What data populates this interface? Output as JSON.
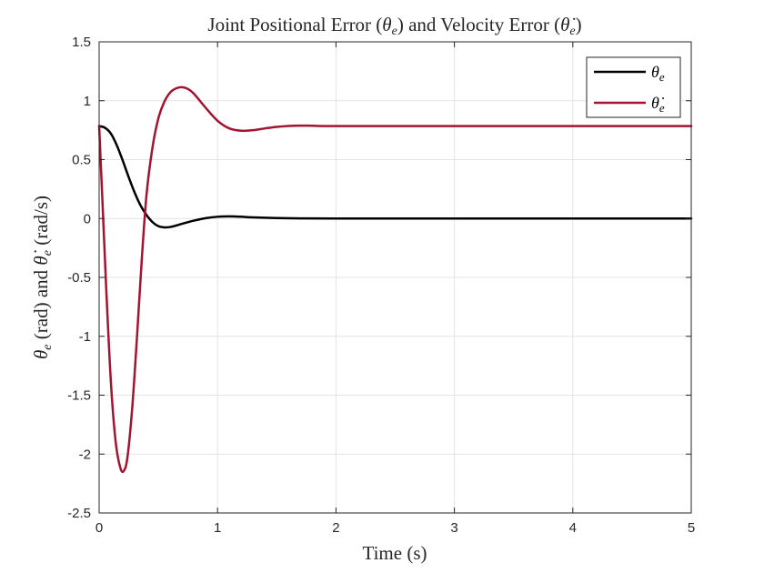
{
  "chart_data": {
    "type": "line",
    "title_parts": {
      "pre": "Joint Positional Error (",
      "sym1": "θ",
      "sub1": "e",
      "mid": ") and Velocity Error (",
      "sym2": "θ̇",
      "sub2": "e",
      "post": ")"
    },
    "xlabel": "Time (s)",
    "ylabel_parts": {
      "sym1": "θ",
      "sub1": "e",
      "mid": " (rad) and ",
      "sym2": "θ̇",
      "sub2": "e",
      "post": " (rad/s)"
    },
    "xlim": [
      0,
      5
    ],
    "ylim": [
      -2.5,
      1.5
    ],
    "xticks": [
      0,
      1,
      2,
      3,
      4,
      5
    ],
    "xtick_labels": [
      "0",
      "1",
      "2",
      "3",
      "4",
      "5"
    ],
    "yticks": [
      -2.5,
      -2,
      -1.5,
      -1,
      -0.5,
      0,
      0.5,
      1,
      1.5
    ],
    "ytick_labels": [
      "-2.5",
      "-2",
      "-1.5",
      "-1",
      "-0.5",
      "0",
      "0.5",
      "1",
      "1.5"
    ],
    "grid": true,
    "legend_position": "top-right",
    "series": [
      {
        "name": "θe",
        "legend_symbol": "θ",
        "legend_sub": "e",
        "color": "#000000",
        "x": [
          0,
          0.05,
          0.1,
          0.15,
          0.2,
          0.25,
          0.3,
          0.35,
          0.4,
          0.45,
          0.5,
          0.55,
          0.6,
          0.65,
          0.7,
          0.8,
          0.9,
          1.0,
          1.1,
          1.2,
          1.3,
          1.5,
          1.7,
          2.0,
          3.0,
          4.0,
          5.0
        ],
        "y": [
          0.785,
          0.77,
          0.72,
          0.62,
          0.49,
          0.35,
          0.22,
          0.11,
          0.03,
          -0.03,
          -0.065,
          -0.075,
          -0.072,
          -0.06,
          -0.045,
          -0.018,
          0.003,
          0.015,
          0.018,
          0.015,
          0.01,
          0.004,
          0.001,
          0.0,
          0.0,
          0.0,
          0.0
        ]
      },
      {
        "name": "θ̇e",
        "legend_symbol": "θ̇",
        "legend_sub": "e",
        "color": "#A2142F",
        "x": [
          0,
          0.03,
          0.06,
          0.1,
          0.14,
          0.18,
          0.21,
          0.24,
          0.28,
          0.32,
          0.36,
          0.4,
          0.45,
          0.5,
          0.55,
          0.6,
          0.65,
          0.7,
          0.75,
          0.8,
          0.9,
          1.0,
          1.1,
          1.2,
          1.3,
          1.4,
          1.5,
          1.6,
          1.7,
          1.8,
          2.0,
          3.0,
          4.0,
          5.0
        ],
        "y": [
          0.785,
          0.1,
          -0.6,
          -1.4,
          -1.9,
          -2.12,
          -2.14,
          -2.02,
          -1.6,
          -1.0,
          -0.35,
          0.2,
          0.6,
          0.85,
          0.99,
          1.07,
          1.105,
          1.115,
          1.1,
          1.06,
          0.94,
          0.83,
          0.765,
          0.745,
          0.75,
          0.765,
          0.778,
          0.786,
          0.789,
          0.788,
          0.785,
          0.785,
          0.785,
          0.785
        ]
      }
    ]
  }
}
